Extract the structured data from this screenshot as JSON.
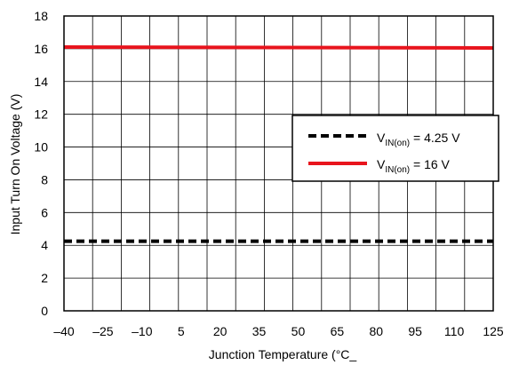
{
  "chart_data": {
    "type": "line",
    "title": "",
    "xlabel": "Junction Temperature (°C_",
    "ylabel": "Input Turn On Voltage (V)",
    "xlim": [
      -40,
      125
    ],
    "ylim": [
      0,
      18
    ],
    "x_ticks": [
      "–40",
      "–25",
      "–10",
      "5",
      "20",
      "35",
      "50",
      "65",
      "80",
      "95",
      "110",
      "125"
    ],
    "y_ticks": [
      "0",
      "2",
      "4",
      "6",
      "8",
      "10",
      "12",
      "14",
      "16",
      "18"
    ],
    "grid": true,
    "legend_position": "right",
    "series": [
      {
        "name_main": "V",
        "name_sub": "IN(on)",
        "name_suffix": " = 4.25 V",
        "style": "dashed",
        "color": "#000000",
        "x": [
          -40,
          125
        ],
        "y": [
          4.25,
          4.25
        ]
      },
      {
        "name_main": "V",
        "name_sub": "IN(on)",
        "name_suffix": " = 16 V",
        "style": "solid",
        "color": "#e8141d",
        "x": [
          -40,
          125
        ],
        "y": [
          16.1,
          16.05
        ]
      }
    ]
  }
}
